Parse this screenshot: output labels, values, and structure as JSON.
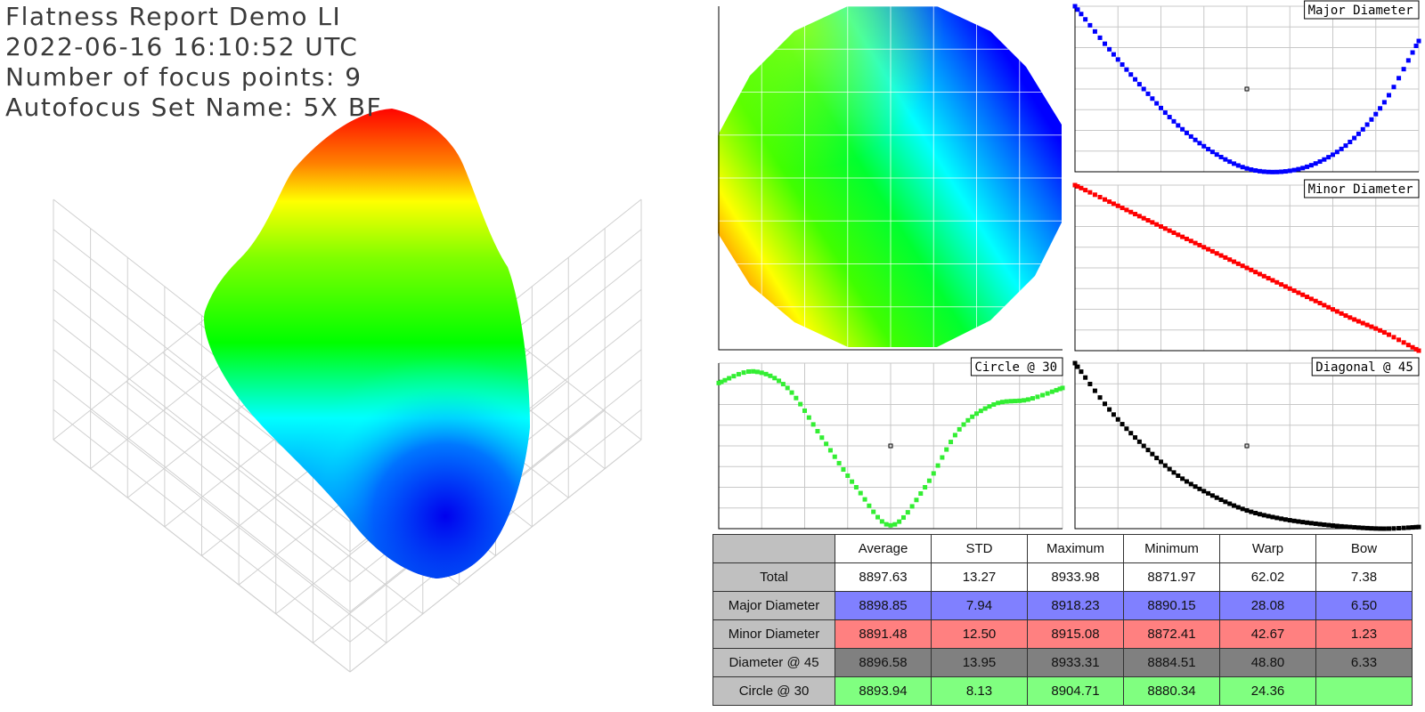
{
  "header": {
    "title": "Flatness Report Demo LI",
    "timestamp": "2022-06-16 16:10:52 UTC",
    "focus_points": "Number of focus points: 9",
    "autofocus_set": "Autofocus Set Name: 5X BF"
  },
  "colors": {
    "major": "#0000ff",
    "minor": "#ff0000",
    "circle": "#33ee33",
    "diagonal": "#000000",
    "major_row_bg": "#8080ff",
    "minor_row_bg": "#ff8080",
    "diag_row_bg": "#808080",
    "circle_row_bg": "#80ff80",
    "label_bg": "#c0c0c0"
  },
  "chart_data": [
    {
      "type": "surface3d",
      "colorscale": [
        "red",
        "yellow",
        "green",
        "cyan",
        "blue"
      ],
      "grid": true
    },
    {
      "type": "heatmap",
      "shape": "circular wafer map",
      "colorscale": [
        "red",
        "yellow",
        "green",
        "cyan",
        "blue"
      ],
      "grid": true
    },
    {
      "type": "scatter",
      "label": "Major Diameter",
      "color": "#0000ff",
      "x": [
        -1,
        -0.8,
        -0.6,
        -0.4,
        -0.2,
        0,
        0.2,
        0.4,
        0.6,
        0.8,
        1
      ],
      "y": [
        1.0,
        0.74,
        0.5,
        0.28,
        0.12,
        0.02,
        0.0,
        0.05,
        0.18,
        0.42,
        0.79
      ]
    },
    {
      "type": "scatter",
      "label": "Minor Diameter",
      "color": "#ff0000",
      "x": [
        -1,
        -0.8,
        -0.6,
        -0.4,
        -0.2,
        0,
        0.2,
        0.4,
        0.6,
        0.8,
        1
      ],
      "y": [
        1.0,
        0.9,
        0.8,
        0.7,
        0.6,
        0.5,
        0.4,
        0.3,
        0.2,
        0.11,
        0.0
      ]
    },
    {
      "type": "scatter",
      "label": "Circle @ 30",
      "color": "#33ee33",
      "x": [
        -1,
        -0.8,
        -0.6,
        -0.4,
        -0.2,
        0,
        0.2,
        0.4,
        0.6,
        0.8,
        1
      ],
      "y": [
        0.88,
        0.95,
        0.85,
        0.55,
        0.25,
        0.02,
        0.25,
        0.6,
        0.75,
        0.78,
        0.85
      ]
    },
    {
      "type": "scatter",
      "label": "Diagonal @ 45",
      "color": "#000000",
      "x": [
        -1,
        -0.8,
        -0.6,
        -0.4,
        -0.2,
        0,
        0.2,
        0.4,
        0.6,
        0.8,
        1
      ],
      "y": [
        1.0,
        0.72,
        0.5,
        0.32,
        0.2,
        0.11,
        0.06,
        0.03,
        0.01,
        0.0,
        0.01
      ]
    }
  ],
  "stats_table": {
    "columns": [
      "Average",
      "STD",
      "Maximum",
      "Minimum",
      "Warp",
      "Bow"
    ],
    "rows": [
      {
        "label": "Total",
        "values": [
          "8897.63",
          "13.27",
          "8933.98",
          "8871.97",
          "62.02",
          "7.38"
        ]
      },
      {
        "label": "Major Diameter",
        "values": [
          "8898.85",
          "7.94",
          "8918.23",
          "8890.15",
          "28.08",
          "6.50"
        ]
      },
      {
        "label": "Minor Diameter",
        "values": [
          "8891.48",
          "12.50",
          "8915.08",
          "8872.41",
          "42.67",
          "1.23"
        ]
      },
      {
        "label": "Diameter @ 45",
        "values": [
          "8896.58",
          "13.95",
          "8933.31",
          "8884.51",
          "48.80",
          "6.33"
        ]
      },
      {
        "label": "Circle @ 30",
        "values": [
          "8893.94",
          "8.13",
          "8904.71",
          "8880.34",
          "24.36",
          ""
        ]
      }
    ]
  }
}
